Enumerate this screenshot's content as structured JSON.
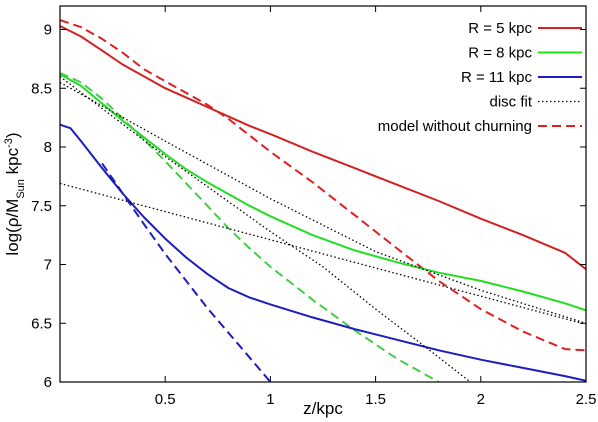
{
  "chart_data": {
    "type": "line",
    "title": "",
    "xlabel": "z/kpc",
    "ylabel_parts": {
      "base": "log(ρ/M",
      "sub": "Sun",
      "mid": " kpc",
      "sup": "-3",
      "end": ")"
    },
    "xlim": [
      0,
      2.5
    ],
    "ylim": [
      6,
      9.2
    ],
    "x_ticks": [
      {
        "value": 0.5,
        "label": "0.5"
      },
      {
        "value": 1,
        "label": "1"
      },
      {
        "value": 1.5,
        "label": "1.5"
      },
      {
        "value": 2,
        "label": "2"
      },
      {
        "value": 2.5,
        "label": "2.5"
      }
    ],
    "y_ticks": [
      {
        "value": 6,
        "label": "6"
      },
      {
        "value": 6.5,
        "label": "6.5"
      },
      {
        "value": 7,
        "label": "7"
      },
      {
        "value": 7.5,
        "label": "7.5"
      },
      {
        "value": 8,
        "label": "8"
      },
      {
        "value": 8.5,
        "label": "8.5"
      },
      {
        "value": 9,
        "label": "9"
      }
    ],
    "grid": false,
    "legend_position": "top-right",
    "legend": [
      {
        "label": "R = 5 kpc",
        "color": "#d42020",
        "style": "solid"
      },
      {
        "label": "R = 8 kpc",
        "color": "#22dd22",
        "style": "solid"
      },
      {
        "label": "R = 11 kpc",
        "color": "#1c1cbf",
        "style": "solid"
      },
      {
        "label": "disc fit",
        "color": "#000000",
        "style": "dotted"
      },
      {
        "label": "model without churning",
        "color": "#e02020",
        "style": "dashed"
      }
    ],
    "series": [
      {
        "id": "r5",
        "color": "#d42020",
        "style": "solid",
        "points": [
          [
            0,
            9.03
          ],
          [
            0.1,
            8.94
          ],
          [
            0.2,
            8.82
          ],
          [
            0.3,
            8.7
          ],
          [
            0.4,
            8.6
          ],
          [
            0.5,
            8.5
          ],
          [
            0.6,
            8.42
          ],
          [
            0.7,
            8.34
          ],
          [
            0.8,
            8.26
          ],
          [
            0.9,
            8.18
          ],
          [
            1.0,
            8.11
          ],
          [
            1.2,
            7.96
          ],
          [
            1.4,
            7.82
          ],
          [
            1.6,
            7.68
          ],
          [
            1.8,
            7.54
          ],
          [
            2.0,
            7.39
          ],
          [
            2.2,
            7.25
          ],
          [
            2.4,
            7.1
          ],
          [
            2.5,
            6.96
          ]
        ]
      },
      {
        "id": "r5-no-churn",
        "color": "#e02020",
        "style": "dashed",
        "points": [
          [
            0,
            9.08
          ],
          [
            0.1,
            9.02
          ],
          [
            0.2,
            8.92
          ],
          [
            0.3,
            8.8
          ],
          [
            0.4,
            8.66
          ],
          [
            0.5,
            8.56
          ],
          [
            0.6,
            8.46
          ],
          [
            0.7,
            8.36
          ],
          [
            0.8,
            8.24
          ],
          [
            0.9,
            8.1
          ],
          [
            1.0,
            7.96
          ],
          [
            1.2,
            7.7
          ],
          [
            1.4,
            7.42
          ],
          [
            1.6,
            7.14
          ],
          [
            1.8,
            6.86
          ],
          [
            2.0,
            6.62
          ],
          [
            2.2,
            6.43
          ],
          [
            2.4,
            6.28
          ],
          [
            2.5,
            6.27
          ]
        ]
      },
      {
        "id": "r8",
        "color": "#22dd22",
        "style": "solid",
        "points": [
          [
            0,
            8.62
          ],
          [
            0.1,
            8.52
          ],
          [
            0.2,
            8.37
          ],
          [
            0.3,
            8.22
          ],
          [
            0.4,
            8.08
          ],
          [
            0.5,
            7.94
          ],
          [
            0.6,
            7.81
          ],
          [
            0.7,
            7.7
          ],
          [
            0.8,
            7.6
          ],
          [
            0.9,
            7.5
          ],
          [
            1.0,
            7.41
          ],
          [
            1.2,
            7.25
          ],
          [
            1.4,
            7.12
          ],
          [
            1.6,
            7.02
          ],
          [
            1.8,
            6.93
          ],
          [
            2.0,
            6.86
          ],
          [
            2.2,
            6.77
          ],
          [
            2.4,
            6.67
          ],
          [
            2.5,
            6.61
          ]
        ]
      },
      {
        "id": "r8-no-churn",
        "color": "#44cc44",
        "style": "dashed",
        "points": [
          [
            0,
            8.63
          ],
          [
            0.1,
            8.55
          ],
          [
            0.2,
            8.41
          ],
          [
            0.3,
            8.24
          ],
          [
            0.4,
            8.06
          ],
          [
            0.5,
            7.88
          ],
          [
            0.6,
            7.69
          ],
          [
            0.7,
            7.5
          ],
          [
            0.8,
            7.31
          ],
          [
            0.9,
            7.14
          ],
          [
            1.0,
            6.98
          ],
          [
            1.2,
            6.7
          ],
          [
            1.4,
            6.44
          ],
          [
            1.6,
            6.2
          ],
          [
            1.8,
            6.0
          ]
        ]
      },
      {
        "id": "r11",
        "color": "#1c1cbf",
        "style": "solid",
        "points": [
          [
            0,
            8.19
          ],
          [
            0.05,
            8.16
          ],
          [
            0.1,
            8.05
          ],
          [
            0.2,
            7.82
          ],
          [
            0.3,
            7.6
          ],
          [
            0.4,
            7.4
          ],
          [
            0.5,
            7.22
          ],
          [
            0.6,
            7.06
          ],
          [
            0.7,
            6.92
          ],
          [
            0.8,
            6.8
          ],
          [
            0.9,
            6.72
          ],
          [
            1.0,
            6.66
          ],
          [
            1.2,
            6.55
          ],
          [
            1.4,
            6.45
          ],
          [
            1.6,
            6.36
          ],
          [
            1.8,
            6.27
          ],
          [
            2.0,
            6.19
          ],
          [
            2.2,
            6.12
          ],
          [
            2.4,
            6.05
          ],
          [
            2.5,
            6.01
          ]
        ]
      },
      {
        "id": "r11-no-churn",
        "color": "#1c1cbf",
        "style": "dashed",
        "points": [
          [
            0.2,
            7.86
          ],
          [
            0.3,
            7.6
          ],
          [
            0.4,
            7.34
          ],
          [
            0.5,
            7.09
          ],
          [
            0.6,
            6.86
          ],
          [
            0.7,
            6.63
          ],
          [
            0.8,
            6.42
          ],
          [
            0.9,
            6.21
          ],
          [
            1.0,
            6.0
          ]
        ]
      },
      {
        "id": "fit-thick",
        "color": "#000000",
        "style": "dotted",
        "points": [
          [
            0,
            7.69
          ],
          [
            2.5,
            6.49
          ]
        ]
      },
      {
        "id": "fit-r8",
        "color": "#000000",
        "style": "dotted",
        "points": [
          [
            0,
            8.55
          ],
          [
            0.5,
            8.05
          ],
          [
            1.0,
            7.56
          ],
          [
            1.5,
            7.11
          ],
          [
            2.0,
            6.78
          ],
          [
            2.5,
            6.5
          ]
        ]
      },
      {
        "id": "fit-r8-thin",
        "color": "#000000",
        "style": "dotted",
        "points": [
          [
            0,
            8.6
          ],
          [
            0.5,
            7.92
          ],
          [
            1.0,
            7.28
          ],
          [
            1.25,
            6.98
          ],
          [
            1.5,
            6.62
          ],
          [
            1.75,
            6.28
          ],
          [
            1.95,
            6.0
          ]
        ]
      }
    ]
  }
}
